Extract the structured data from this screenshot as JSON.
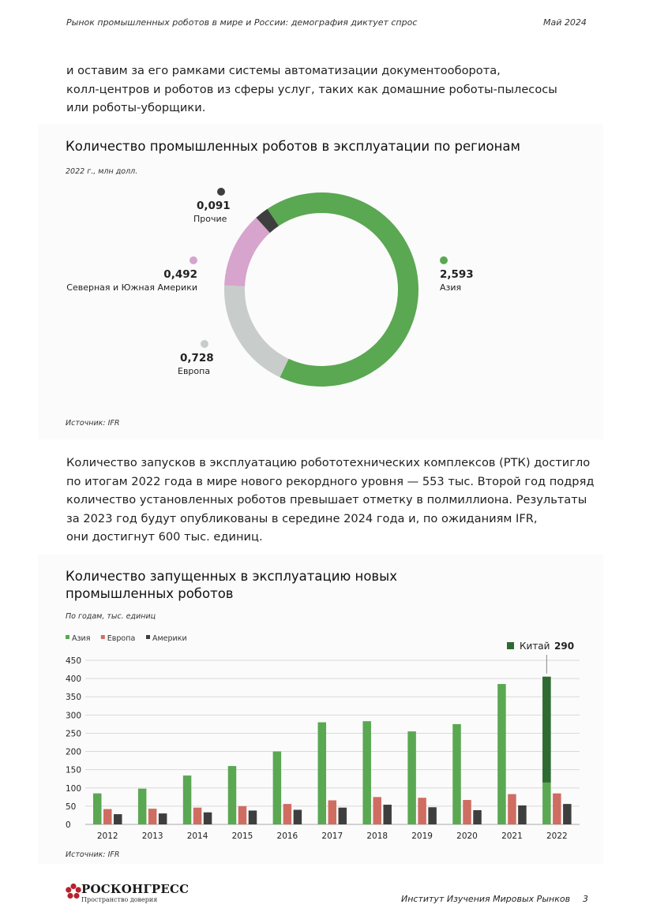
{
  "header": {
    "title": "Рынок промышленных роботов в мире и России: демография диктует спрос",
    "date": "Май 2024"
  },
  "intro_lines": [
    "и оставим за его рамками системы автоматизации документооборота,",
    "колл-центров и роботов из сферы услуг, таких как домашние роботы-пылесосы",
    "или роботы-уборщики."
  ],
  "chart1": {
    "title": "Количество промышленных роботов в эксплуатации по регионам",
    "subtitle": "2022 г., млн долл.",
    "source": "Источник: IFR",
    "chart_data": {
      "type": "pie",
      "title": "Количество промышленных роботов в эксплуатации по регионам",
      "subtitle": "2022 г., млн долл.",
      "slices": [
        {
          "name": "Азия",
          "value": 2.593,
          "label": "2,593",
          "color": "#5aa852"
        },
        {
          "name": "Европа",
          "value": 0.728,
          "label": "0,728",
          "color": "#c8cccb"
        },
        {
          "name": "Северная и Южная Америки",
          "value": 0.492,
          "label": "0,492",
          "color": "#d6a4cd"
        },
        {
          "name": "Прочие",
          "value": 0.091,
          "label": "0,091",
          "color": "#3e3e3e"
        }
      ]
    }
  },
  "middle_lines": [
    "Количество запусков в эксплуатацию робототехнических комплексов (РТК) достигло",
    "по итогам 2022 года в мире нового рекордного уровня — 553 тыс. Второй год подряд",
    "количество установленных роботов превышает отметку в полмиллиона. Результаты",
    "за 2023 год будут опубликованы в середине 2024 года и, по ожиданиям IFR,",
    "они достигнут 600 тыс. единиц."
  ],
  "chart2": {
    "title_lines": [
      "Количество запущенных в эксплуатацию новых",
      "промышленных роботов"
    ],
    "subtitle": "По годам, тыс. единиц",
    "source": "Источник: IFR",
    "chart_data": {
      "type": "bar",
      "title": "Количество запущенных в эксплуатацию новых промышленных роботов",
      "subtitle": "По годам, тыс. единиц",
      "categories": [
        "2012",
        "2013",
        "2014",
        "2015",
        "2016",
        "2017",
        "2018",
        "2019",
        "2020",
        "2021",
        "2022"
      ],
      "series": [
        {
          "name": "Азия",
          "color": "#5aa852",
          "values": [
            85,
            98,
            134,
            160,
            200,
            280,
            283,
            255,
            275,
            385,
            405
          ]
        },
        {
          "name": "Европа",
          "color": "#cf6d62",
          "values": [
            42,
            43,
            46,
            50,
            56,
            66,
            75,
            73,
            67,
            83,
            85
          ]
        },
        {
          "name": "Америки",
          "color": "#3e3e3e",
          "values": [
            28,
            30,
            33,
            38,
            40,
            46,
            54,
            47,
            39,
            52,
            56
          ]
        }
      ],
      "highlight": {
        "category": "2022",
        "name": "Китай",
        "value": 290,
        "label": "290",
        "color": "#2e6b33"
      },
      "yticks": [
        0,
        50,
        100,
        150,
        200,
        250,
        300,
        350,
        400,
        450
      ],
      "ylim": [
        0,
        450
      ],
      "grid": true,
      "legend": "top-left"
    }
  },
  "footer": {
    "brand": "РОСКОНГРЕСС",
    "tagline": "Пространство доверия",
    "org": "Институт Изучения Мировых Рынков",
    "page": "3"
  }
}
